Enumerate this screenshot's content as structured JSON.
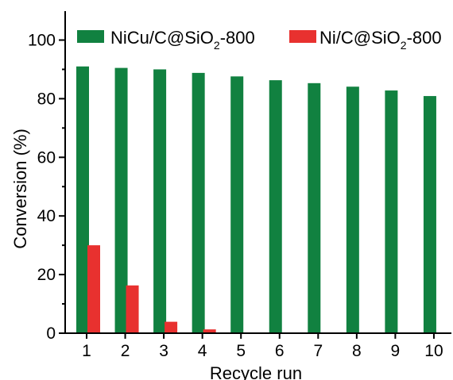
{
  "chart_data": {
    "type": "bar",
    "categories": [
      "1",
      "2",
      "3",
      "4",
      "5",
      "6",
      "7",
      "8",
      "9",
      "10"
    ],
    "series": [
      {
        "name": "NiCu/C@SiO2-800",
        "color": "#118140",
        "values": [
          91.0,
          90.5,
          90.0,
          88.8,
          87.6,
          86.3,
          85.3,
          84.1,
          82.8,
          80.9
        ]
      },
      {
        "name": "Ni/C@SiO2-800",
        "color": "#e8312f",
        "values": [
          30.0,
          16.3,
          3.9,
          1.3,
          0,
          0,
          0,
          0,
          0,
          0
        ]
      }
    ],
    "xlabel": "Recycle run",
    "ylabel": "Conversion (%)",
    "ylim": [
      0,
      110
    ],
    "yticks": [
      0,
      20,
      40,
      60,
      80,
      100
    ],
    "legend": {
      "placement": "top",
      "entries": [
        {
          "base": "NiCu/C@SiO",
          "sub": "2",
          "suffix": "-800"
        },
        {
          "base": "Ni/C@SiO",
          "sub": "2",
          "suffix": "-800"
        }
      ]
    },
    "grid": false
  }
}
